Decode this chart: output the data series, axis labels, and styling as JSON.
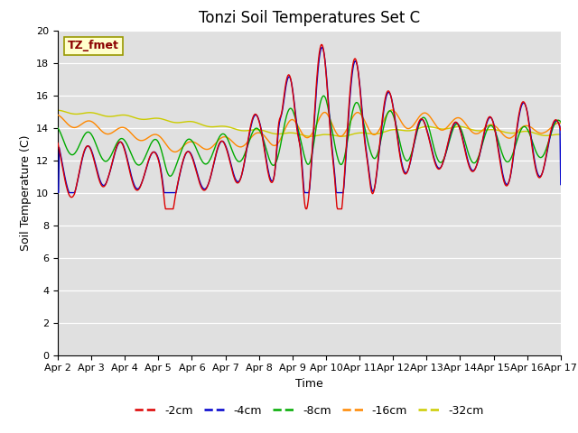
{
  "title": "Tonzi Soil Temperatures Set C",
  "xlabel": "Time",
  "ylabel": "Soil Temperature (C)",
  "ylim": [
    0,
    20
  ],
  "yticks": [
    0,
    2,
    4,
    6,
    8,
    10,
    12,
    14,
    16,
    18,
    20
  ],
  "xtick_labels": [
    "Apr 2",
    "Apr 3",
    "Apr 4",
    "Apr 5",
    "Apr 6",
    "Apr 7",
    "Apr 8",
    "Apr 9",
    "Apr 10",
    "Apr 11",
    "Apr 12",
    "Apr 13",
    "Apr 14",
    "Apr 15",
    "Apr 16",
    "Apr 17"
  ],
  "colors": {
    "-2cm": "#dd0000",
    "-4cm": "#0000cc",
    "-8cm": "#00aa00",
    "-16cm": "#ff8800",
    "-32cm": "#cccc00"
  },
  "annotation_text": "TZ_fmet",
  "annotation_color": "#8B0000",
  "annotation_bg": "#ffffcc",
  "bg_color": "#e0e0e0",
  "fig_bg": "#ffffff",
  "title_fontsize": 12,
  "axis_fontsize": 9,
  "tick_fontsize": 8,
  "legend_fontsize": 9
}
